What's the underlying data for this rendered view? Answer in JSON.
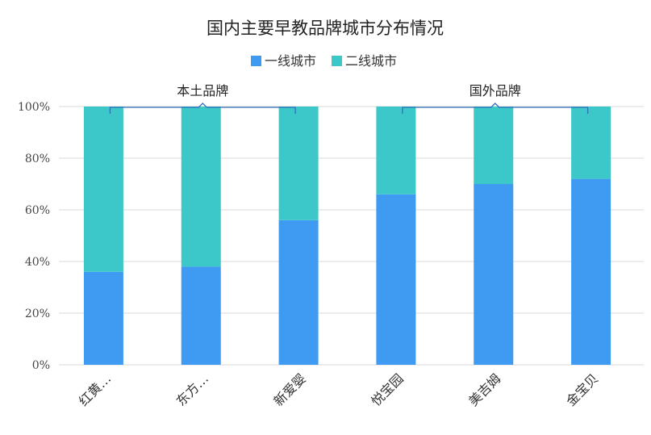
{
  "chart_data": {
    "type": "bar",
    "stacked": true,
    "percent": true,
    "title": "国内主要早教品牌城市分布情况",
    "categories": [
      "红黄…",
      "东方…",
      "新爱婴",
      "悦宝园",
      "美吉姆",
      "金宝贝"
    ],
    "series": [
      {
        "name": "一线城市",
        "color": "#3f9bf2",
        "values": [
          36,
          38,
          56,
          66,
          70,
          72
        ]
      },
      {
        "name": "二线城市",
        "color": "#3cc8c8",
        "values": [
          64,
          62,
          44,
          34,
          30,
          28
        ]
      }
    ],
    "ylim": [
      0,
      100
    ],
    "yticks": [
      0,
      20,
      40,
      60,
      80,
      100
    ],
    "ytick_labels": [
      "0%",
      "20%",
      "40%",
      "60%",
      "80%",
      "100%"
    ],
    "grid": true,
    "legend_position": "top",
    "groups": [
      {
        "label": "本土品牌",
        "categories": [
          "红黄…",
          "东方…",
          "新爱婴"
        ]
      },
      {
        "label": "国外品牌",
        "categories": [
          "悦宝园",
          "美吉姆",
          "金宝贝"
        ]
      }
    ]
  }
}
